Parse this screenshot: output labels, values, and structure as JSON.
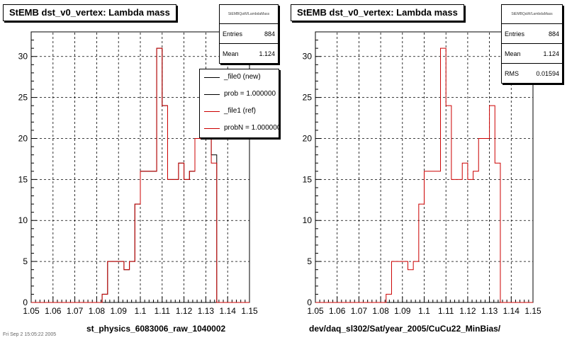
{
  "chart_data": [
    {
      "type": "histogram",
      "title": "StEMB dst_v0_vertex: Lambda mass",
      "xlabel": "st_physics_6083006_raw_1040002",
      "xlim": [
        1.05,
        1.15
      ],
      "ylim": [
        0,
        33
      ],
      "xticks": [
        "1.05",
        "1.06",
        "1.07",
        "1.08",
        "1.09",
        "1.1",
        "1.11",
        "1.12",
        "1.13",
        "1.14",
        "1.15"
      ],
      "yticks": [
        "0",
        "5",
        "10",
        "15",
        "20",
        "25",
        "30"
      ],
      "grid": true,
      "bin_edges": [
        1.05,
        1.0525,
        1.055,
        1.0575,
        1.06,
        1.0625,
        1.065,
        1.0675,
        1.07,
        1.0725,
        1.075,
        1.0775,
        1.08,
        1.0825,
        1.085,
        1.0875,
        1.09,
        1.0925,
        1.095,
        1.0975,
        1.1,
        1.1025,
        1.105,
        1.1075,
        1.11,
        1.1125,
        1.115,
        1.1175,
        1.12,
        1.1225,
        1.125,
        1.1275,
        1.13,
        1.1325,
        1.135,
        1.1375,
        1.14,
        1.1425,
        1.145,
        1.1475,
        1.15
      ],
      "series": [
        {
          "name": "_file0 (new)",
          "color": "#000000",
          "values": [
            0,
            0,
            0,
            0,
            0,
            0,
            0,
            0,
            0,
            0,
            0,
            0,
            0,
            1,
            5,
            5,
            5,
            4,
            5,
            12,
            16,
            16,
            16,
            31,
            24,
            15,
            15,
            17,
            15,
            16,
            20,
            20,
            24,
            18,
            0,
            0,
            0,
            0,
            0,
            0
          ]
        },
        {
          "name": "_file1 (ref)",
          "color": "#cc0000",
          "values": [
            0,
            0,
            0,
            0,
            0,
            0,
            0,
            0,
            0,
            0,
            0,
            0,
            0,
            1,
            5,
            5,
            5,
            4,
            5,
            12,
            16,
            16,
            16,
            31,
            24,
            15,
            15,
            17,
            15,
            16,
            20,
            20,
            24,
            17,
            0,
            0,
            0,
            0,
            0,
            0
          ]
        }
      ],
      "stats": {
        "header": "StEMBQaW/LambdaMass",
        "entries_label": "Entries",
        "entries": "884",
        "mean_label": "Mean",
        "mean": "1.124"
      },
      "legend": [
        "_file0 (new)",
        "prob = 1.000000",
        "_file1 (ref)",
        "probN = 1.000000"
      ]
    },
    {
      "type": "histogram",
      "title": "StEMB dst_v0_vertex: Lambda mass",
      "xlabel": "dev/daq_sl302/Sat/year_2005/CuCu22_MinBias/",
      "xlim": [
        1.05,
        1.15
      ],
      "ylim": [
        0,
        33
      ],
      "xticks": [
        "1.05",
        "1.06",
        "1.07",
        "1.08",
        "1.09",
        "1.1",
        "1.11",
        "1.12",
        "1.13",
        "1.14",
        "1.15"
      ],
      "yticks": [
        "0",
        "5",
        "10",
        "15",
        "20",
        "25",
        "30"
      ],
      "grid": true,
      "series": [
        {
          "name": "",
          "color": "#cc0000",
          "values": [
            0,
            0,
            0,
            0,
            0,
            0,
            0,
            0,
            0,
            0,
            0,
            0,
            0,
            1,
            5,
            5,
            5,
            4,
            5,
            12,
            16,
            16,
            16,
            31,
            24,
            15,
            15,
            17,
            15,
            16,
            20,
            20,
            24,
            17,
            0,
            0,
            0,
            0,
            0,
            0
          ]
        }
      ],
      "stats": {
        "header": "StEMBQaW/LambdaMass",
        "entries_label": "Entries",
        "entries": "884",
        "mean_label": "Mean",
        "mean": "1.124",
        "rms_label": "RMS",
        "rms": "0.01594"
      }
    }
  ],
  "footer": "Fri Sep  2 15:05:22 2005"
}
